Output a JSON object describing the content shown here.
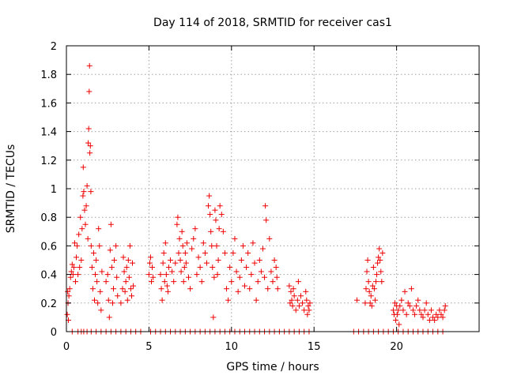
{
  "chart_data": {
    "type": "scatter",
    "title": "Day 114 of 2018, SRMTID for receiver cas1",
    "xlabel": "GPS time / hours",
    "ylabel": "SRMTID / TECUs",
    "xlim": [
      0,
      25
    ],
    "ylim": [
      0,
      2
    ],
    "xticks": [
      0,
      5,
      10,
      15,
      20
    ],
    "yticks": [
      0,
      0.2,
      0.4,
      0.6,
      0.8,
      1,
      1.2,
      1.4,
      1.6,
      1.8,
      2
    ],
    "xtick_labels": [
      "0",
      "5",
      "10",
      "15",
      "20"
    ],
    "ytick_labels": [
      "0",
      "0.2",
      "0.4",
      "0.6",
      "0.8",
      "1",
      "1.2",
      "1.4",
      "1.6",
      "1.8",
      "2"
    ],
    "grid": true,
    "marker": "+",
    "series_color": "#ee0000",
    "series": [
      {
        "name": "cas1",
        "points": [
          [
            0.05,
            0.12
          ],
          [
            0.08,
            0.28
          ],
          [
            0.1,
            0.2
          ],
          [
            0.12,
            0.08
          ],
          [
            0.15,
            0.25
          ],
          [
            0.2,
            0.3
          ],
          [
            0.25,
            0.38
          ],
          [
            0.3,
            0.42
          ],
          [
            0.35,
            0.47
          ],
          [
            0.4,
            0.4
          ],
          [
            0.45,
            0.45
          ],
          [
            0.5,
            0.62
          ],
          [
            0.55,
            0.35
          ],
          [
            0.6,
            0.52
          ],
          [
            0.65,
            0.6
          ],
          [
            0.7,
            0.4
          ],
          [
            0.75,
            0.68
          ],
          [
            0.8,
            0.45
          ],
          [
            0.85,
            0.8
          ],
          [
            0.9,
            0.5
          ],
          [
            0.95,
            0.72
          ],
          [
            1.0,
            0.95
          ],
          [
            1.02,
            1.15
          ],
          [
            1.05,
            0.98
          ],
          [
            1.1,
            0.85
          ],
          [
            1.15,
            0.75
          ],
          [
            1.2,
            0.88
          ],
          [
            1.25,
            1.02
          ],
          [
            1.3,
            0.65
          ],
          [
            1.32,
            1.32
          ],
          [
            1.35,
            1.42
          ],
          [
            1.38,
            1.68
          ],
          [
            1.4,
            1.86
          ],
          [
            1.42,
            1.25
          ],
          [
            1.45,
            1.3
          ],
          [
            1.48,
            0.98
          ],
          [
            1.5,
            0.6
          ],
          [
            1.55,
            0.45
          ],
          [
            1.6,
            0.3
          ],
          [
            1.65,
            0.55
          ],
          [
            1.7,
            0.22
          ],
          [
            1.75,
            0.4
          ],
          [
            1.8,
            0.5
          ],
          [
            1.85,
            0.35
          ],
          [
            1.9,
            0.2
          ],
          [
            1.95,
            0.72
          ],
          [
            2.0,
            0.6
          ],
          [
            2.05,
            0.28
          ],
          [
            2.1,
            0.15
          ],
          [
            2.15,
            0.42
          ],
          [
            2.4,
            0.35
          ],
          [
            2.5,
            0.4
          ],
          [
            2.55,
            0.22
          ],
          [
            2.6,
            0.1
          ],
          [
            2.65,
            0.57
          ],
          [
            2.7,
            0.75
          ],
          [
            2.75,
            0.45
          ],
          [
            2.8,
            0.2
          ],
          [
            2.85,
            0.3
          ],
          [
            2.9,
            0.5
          ],
          [
            3.0,
            0.6
          ],
          [
            3.05,
            0.38
          ],
          [
            3.1,
            0.25
          ],
          [
            3.3,
            0.2
          ],
          [
            3.4,
            0.3
          ],
          [
            3.45,
            0.52
          ],
          [
            3.5,
            0.42
          ],
          [
            3.55,
            0.28
          ],
          [
            3.6,
            0.35
          ],
          [
            3.65,
            0.45
          ],
          [
            3.7,
            0.22
          ],
          [
            3.75,
            0.5
          ],
          [
            3.8,
            0.38
          ],
          [
            3.85,
            0.6
          ],
          [
            3.9,
            0.3
          ],
          [
            3.95,
            0.25
          ],
          [
            4.0,
            0.48
          ],
          [
            4.05,
            0.32
          ],
          [
            5.0,
            0.4
          ],
          [
            5.05,
            0.48
          ],
          [
            5.1,
            0.52
          ],
          [
            5.15,
            0.35
          ],
          [
            5.2,
            0.45
          ],
          [
            5.25,
            0.38
          ],
          [
            5.7,
            0.4
          ],
          [
            5.75,
            0.3
          ],
          [
            5.8,
            0.22
          ],
          [
            5.85,
            0.48
          ],
          [
            5.9,
            0.55
          ],
          [
            5.95,
            0.35
          ],
          [
            6.0,
            0.62
          ],
          [
            6.05,
            0.4
          ],
          [
            6.1,
            0.32
          ],
          [
            6.15,
            0.28
          ],
          [
            6.2,
            0.45
          ],
          [
            6.3,
            0.5
          ],
          [
            6.4,
            0.42
          ],
          [
            6.5,
            0.35
          ],
          [
            6.6,
            0.48
          ],
          [
            6.7,
            0.75
          ],
          [
            6.75,
            0.8
          ],
          [
            6.8,
            0.55
          ],
          [
            6.85,
            0.65
          ],
          [
            6.9,
            0.5
          ],
          [
            6.95,
            0.42
          ],
          [
            7.0,
            0.7
          ],
          [
            7.05,
            0.6
          ],
          [
            7.1,
            0.35
          ],
          [
            7.15,
            0.45
          ],
          [
            7.2,
            0.55
          ],
          [
            7.25,
            0.48
          ],
          [
            7.3,
            0.62
          ],
          [
            7.4,
            0.38
          ],
          [
            7.5,
            0.3
          ],
          [
            7.6,
            0.58
          ],
          [
            7.7,
            0.65
          ],
          [
            7.8,
            0.72
          ],
          [
            7.9,
            0.4
          ],
          [
            8.0,
            0.52
          ],
          [
            8.1,
            0.45
          ],
          [
            8.2,
            0.35
          ],
          [
            8.3,
            0.62
          ],
          [
            8.4,
            0.55
          ],
          [
            8.5,
            0.48
          ],
          [
            8.6,
            0.88
          ],
          [
            8.65,
            0.95
          ],
          [
            8.7,
            0.82
          ],
          [
            8.75,
            0.7
          ],
          [
            8.8,
            0.6
          ],
          [
            8.85,
            0.45
          ],
          [
            8.9,
            0.1
          ],
          [
            8.95,
            0.38
          ],
          [
            9.0,
            0.85
          ],
          [
            9.05,
            0.78
          ],
          [
            9.1,
            0.6
          ],
          [
            9.15,
            0.4
          ],
          [
            9.2,
            0.5
          ],
          [
            9.25,
            0.72
          ],
          [
            9.3,
            0.88
          ],
          [
            9.4,
            0.82
          ],
          [
            9.5,
            0.7
          ],
          [
            9.6,
            0.55
          ],
          [
            9.7,
            0.3
          ],
          [
            9.8,
            0.22
          ],
          [
            9.9,
            0.45
          ],
          [
            10.0,
            0.35
          ],
          [
            10.1,
            0.55
          ],
          [
            10.2,
            0.65
          ],
          [
            10.3,
            0.42
          ],
          [
            10.4,
            0.28
          ],
          [
            10.5,
            0.38
          ],
          [
            10.6,
            0.5
          ],
          [
            10.7,
            0.6
          ],
          [
            10.8,
            0.32
          ],
          [
            10.9,
            0.45
          ],
          [
            11.0,
            0.55
          ],
          [
            11.1,
            0.3
          ],
          [
            11.2,
            0.4
          ],
          [
            11.3,
            0.62
          ],
          [
            11.4,
            0.48
          ],
          [
            11.5,
            0.22
          ],
          [
            11.6,
            0.35
          ],
          [
            11.7,
            0.5
          ],
          [
            11.8,
            0.42
          ],
          [
            11.9,
            0.58
          ],
          [
            12.0,
            0.38
          ],
          [
            12.05,
            0.88
          ],
          [
            12.1,
            0.78
          ],
          [
            12.2,
            0.3
          ],
          [
            12.3,
            0.65
          ],
          [
            12.4,
            0.42
          ],
          [
            12.5,
            0.35
          ],
          [
            12.6,
            0.5
          ],
          [
            12.7,
            0.45
          ],
          [
            12.75,
            0.38
          ],
          [
            12.8,
            0.3
          ],
          [
            13.5,
            0.32
          ],
          [
            13.55,
            0.2
          ],
          [
            13.6,
            0.28
          ],
          [
            13.65,
            0.22
          ],
          [
            13.7,
            0.18
          ],
          [
            13.75,
            0.3
          ],
          [
            13.8,
            0.25
          ],
          [
            13.9,
            0.15
          ],
          [
            14.0,
            0.22
          ],
          [
            14.05,
            0.35
          ],
          [
            14.1,
            0.18
          ],
          [
            14.2,
            0.25
          ],
          [
            14.3,
            0.2
          ],
          [
            14.4,
            0.15
          ],
          [
            14.5,
            0.28
          ],
          [
            14.55,
            0.22
          ],
          [
            14.6,
            0.12
          ],
          [
            14.65,
            0.18
          ],
          [
            14.7,
            0.15
          ],
          [
            14.75,
            0.2
          ],
          [
            17.6,
            0.22
          ],
          [
            18.1,
            0.2
          ],
          [
            18.15,
            0.3
          ],
          [
            18.2,
            0.42
          ],
          [
            18.25,
            0.5
          ],
          [
            18.3,
            0.35
          ],
          [
            18.35,
            0.28
          ],
          [
            18.4,
            0.2
          ],
          [
            18.45,
            0.25
          ],
          [
            18.5,
            0.18
          ],
          [
            18.55,
            0.32
          ],
          [
            18.6,
            0.45
          ],
          [
            18.65,
            0.3
          ],
          [
            18.7,
            0.22
          ],
          [
            18.75,
            0.35
          ],
          [
            18.8,
            0.4
          ],
          [
            18.85,
            0.48
          ],
          [
            18.9,
            0.52
          ],
          [
            18.95,
            0.58
          ],
          [
            19.0,
            0.5
          ],
          [
            19.05,
            0.42
          ],
          [
            19.1,
            0.35
          ],
          [
            19.15,
            0.55
          ],
          [
            19.8,
            0.15
          ],
          [
            19.85,
            0.12
          ],
          [
            19.9,
            0.2
          ],
          [
            19.95,
            0.08
          ],
          [
            20.0,
            0.18
          ],
          [
            20.05,
            0.12
          ],
          [
            20.1,
            0.15
          ],
          [
            20.15,
            0.05
          ],
          [
            20.2,
            0.18
          ],
          [
            20.3,
            0.22
          ],
          [
            20.4,
            0.15
          ],
          [
            20.5,
            0.28
          ],
          [
            20.6,
            0.12
          ],
          [
            20.7,
            0.2
          ],
          [
            20.8,
            0.18
          ],
          [
            20.9,
            0.3
          ],
          [
            21.0,
            0.15
          ],
          [
            21.1,
            0.12
          ],
          [
            21.2,
            0.18
          ],
          [
            21.3,
            0.22
          ],
          [
            21.4,
            0.15
          ],
          [
            21.5,
            0.12
          ],
          [
            21.6,
            0.1
          ],
          [
            21.7,
            0.15
          ],
          [
            21.8,
            0.2
          ],
          [
            21.9,
            0.12
          ],
          [
            22.0,
            0.08
          ],
          [
            22.1,
            0.15
          ],
          [
            22.2,
            0.1
          ],
          [
            22.3,
            0.08
          ],
          [
            22.4,
            0.12
          ],
          [
            22.5,
            0.1
          ],
          [
            22.6,
            0.15
          ],
          [
            22.7,
            0.12
          ],
          [
            22.8,
            0.1
          ],
          [
            22.9,
            0.15
          ],
          [
            22.95,
            0.18
          ]
        ],
        "zero_points": [
          0.35,
          0.7,
          0.9,
          1.05,
          1.25,
          1.5,
          1.8,
          2.1,
          2.4,
          2.7,
          3.0,
          3.3,
          3.6,
          3.9,
          4.2,
          4.5,
          5.1,
          5.4,
          5.7,
          6.0,
          6.3,
          6.6,
          6.9,
          7.2,
          7.5,
          7.8,
          8.1,
          8.4,
          8.7,
          9.0,
          9.3,
          9.6,
          9.9,
          10.2,
          10.5,
          10.8,
          11.1,
          11.4,
          11.7,
          12.0,
          12.3,
          12.6,
          12.9,
          13.2,
          13.5,
          13.8,
          14.1,
          14.4,
          14.7,
          17.4,
          17.7,
          18.0,
          18.3,
          18.6,
          18.9,
          19.2,
          19.5,
          19.8,
          20.1,
          20.4,
          20.7,
          21.0,
          21.3,
          21.6,
          21.9,
          22.2,
          22.5,
          22.8
        ]
      }
    ]
  }
}
